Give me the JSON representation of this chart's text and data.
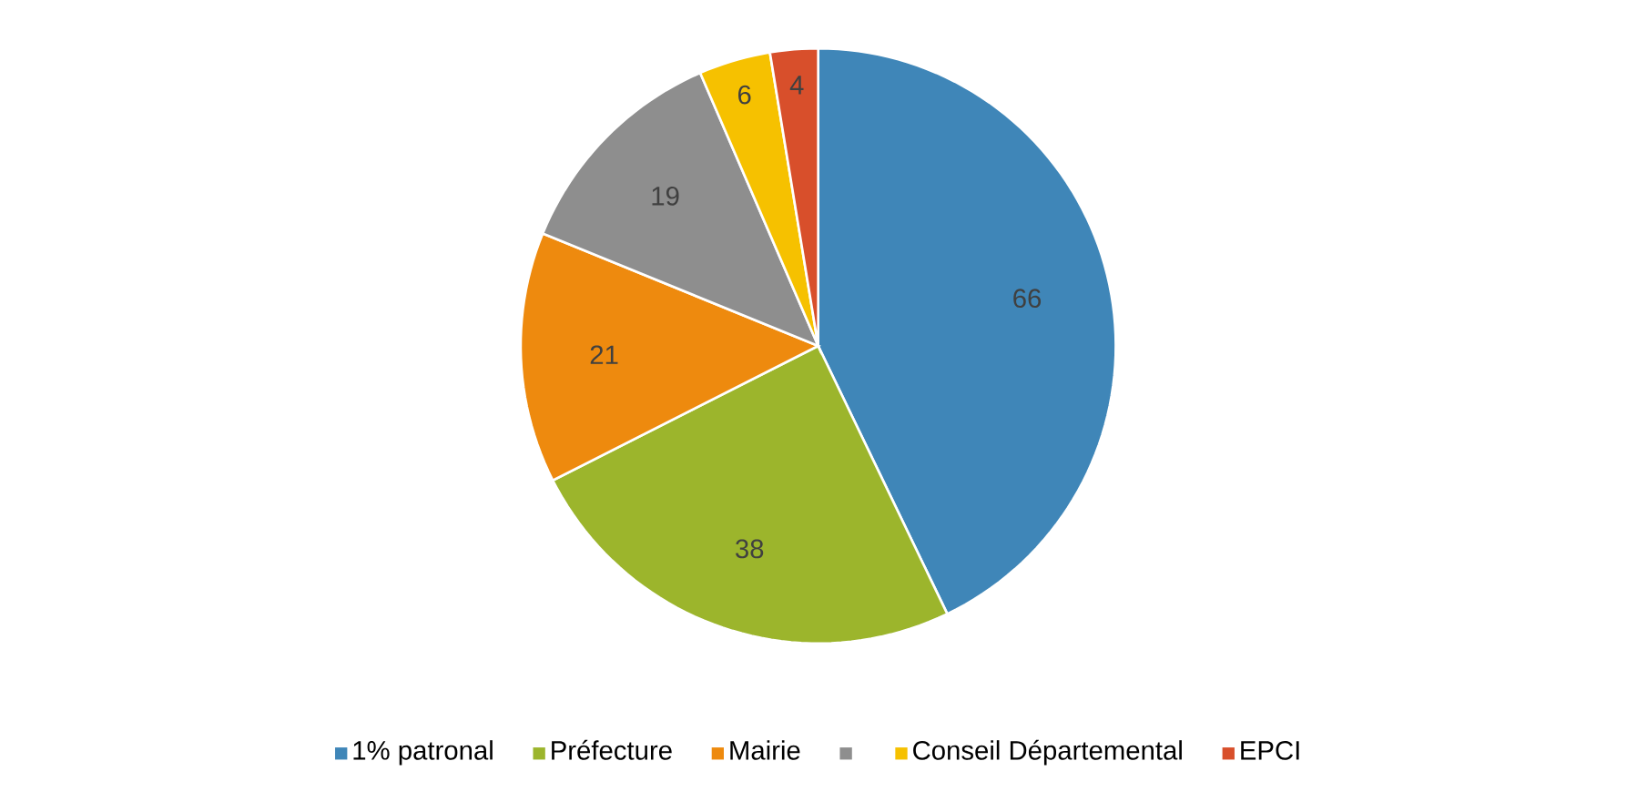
{
  "chart_data": {
    "type": "pie",
    "categories": [
      "1% patronal",
      "Préfecture",
      "Mairie",
      null,
      "Conseil Départemental",
      "EPCI"
    ],
    "values": [
      66,
      38,
      21,
      19,
      6,
      4
    ],
    "colors": [
      "#3f86b8",
      "#9cb52c",
      "#ee8a0e",
      "#8e8e8e",
      "#f6c100",
      "#d84f2b"
    ],
    "data_labels": true,
    "legend": "bottom"
  }
}
